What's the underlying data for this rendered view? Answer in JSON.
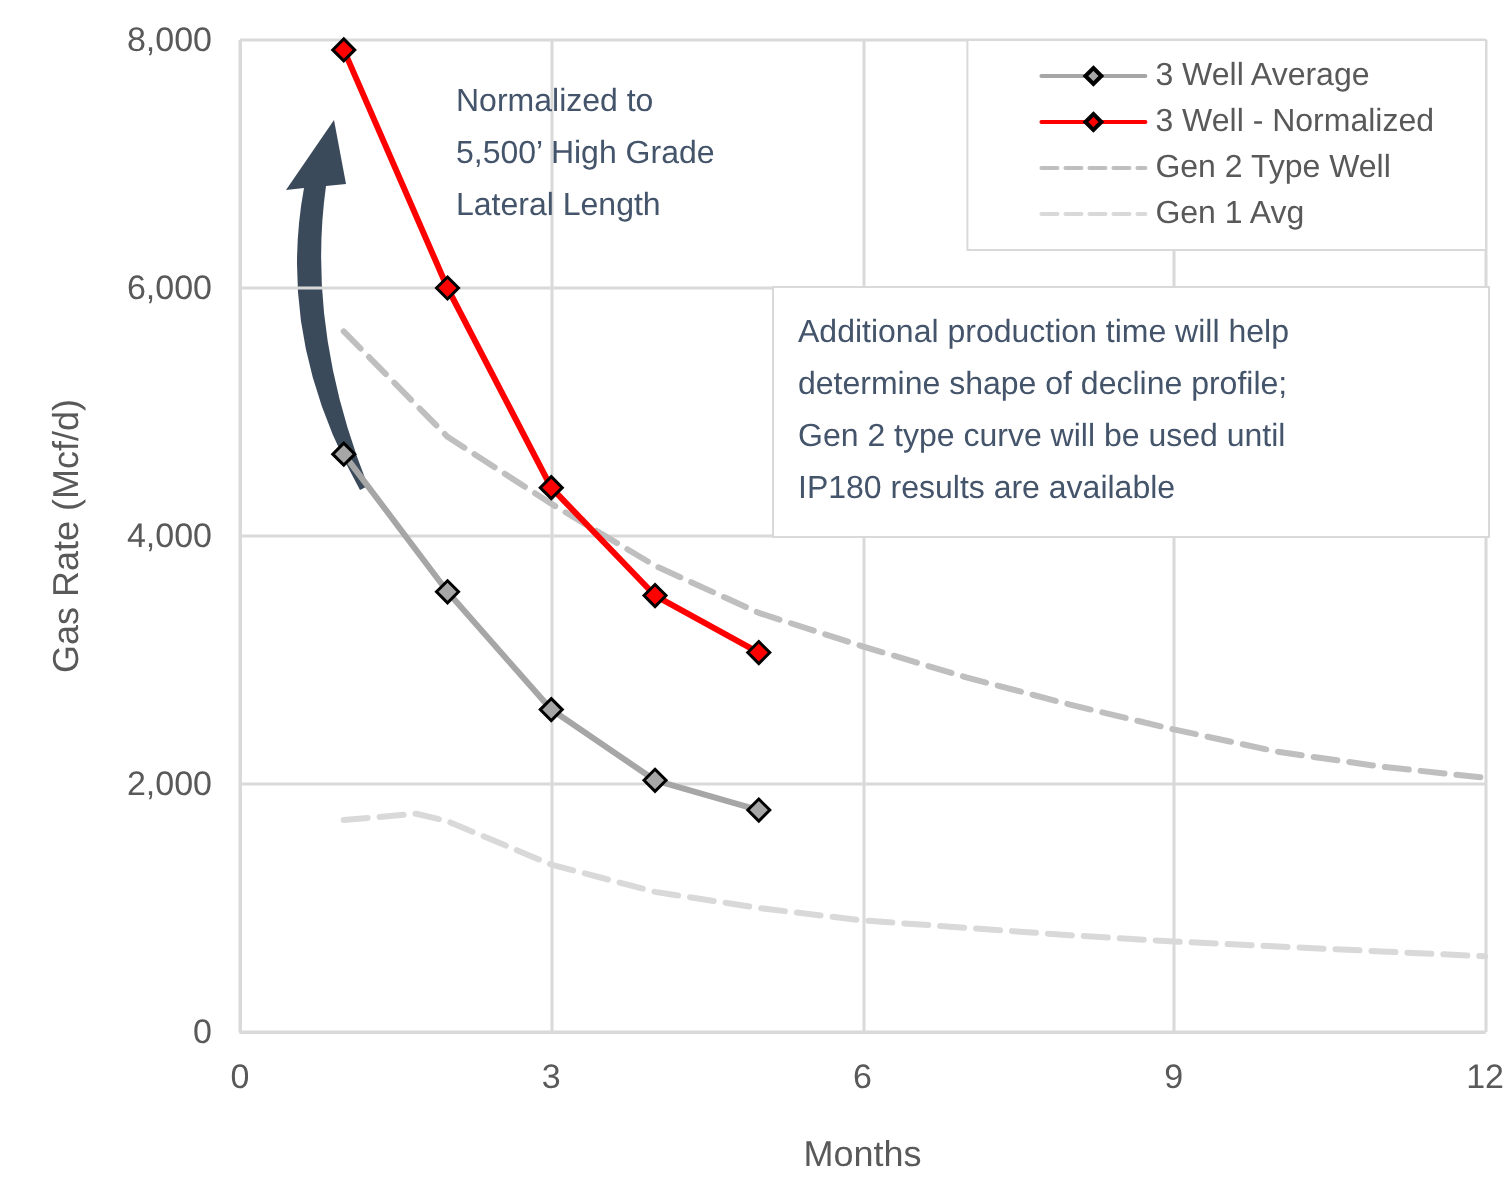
{
  "chart_data": {
    "type": "line",
    "xlabel": "Months",
    "ylabel": "Gas Rate (Mcf/d)",
    "xlim": [
      0,
      12
    ],
    "xticks": [
      0,
      3,
      6,
      9,
      12
    ],
    "ylim": [
      0,
      8000
    ],
    "yticks": [
      {
        "value": 0,
        "label": "0"
      },
      {
        "value": 2000,
        "label": "2,000"
      },
      {
        "value": 4000,
        "label": "4,000"
      },
      {
        "value": 6000,
        "label": "6,000"
      },
      {
        "value": 8000,
        "label": "8,000"
      }
    ],
    "grid": true,
    "legend": "top right",
    "series": [
      {
        "name": "3 Well Average",
        "color": "#a6a6a6",
        "marker": "diamond",
        "line_style": "solid",
        "x": [
          1,
          2,
          3,
          4,
          5
        ],
        "values": [
          4660,
          3550,
          2600,
          2030,
          1790
        ]
      },
      {
        "name": "3 Well - Normalized",
        "color": "#ff0000",
        "marker": "diamond",
        "line_style": "solid",
        "x": [
          1,
          2,
          3,
          4,
          5
        ],
        "values": [
          7920,
          6000,
          4390,
          3520,
          3060
        ]
      },
      {
        "name": "Gen 2 Type Well",
        "color": "#bfbfbf",
        "marker": "none",
        "line_style": "dashed",
        "x": [
          1,
          2,
          3,
          4,
          5,
          6,
          7,
          8,
          9,
          10,
          11,
          12
        ],
        "values": [
          5650,
          4800,
          4260,
          3760,
          3380,
          3110,
          2860,
          2640,
          2440,
          2260,
          2140,
          2050
        ]
      },
      {
        "name": "Gen 1 Avg",
        "color": "#d9d9d9",
        "marker": "none",
        "line_style": "dashed",
        "x": [
          1,
          1.7,
          2,
          3,
          4,
          5,
          6,
          7,
          8,
          9,
          10,
          11,
          12
        ],
        "values": [
          1710,
          1760,
          1700,
          1350,
          1130,
          1000,
          900,
          840,
          780,
          730,
          690,
          650,
          610
        ]
      }
    ],
    "annotations": [
      "Normalized to\n5,500’ High Grade\nLateral Length",
      "Additional production time will help\ndetermine shape of decline profile;\nGen 2 type curve will be used until\nIP180 results are available"
    ]
  }
}
